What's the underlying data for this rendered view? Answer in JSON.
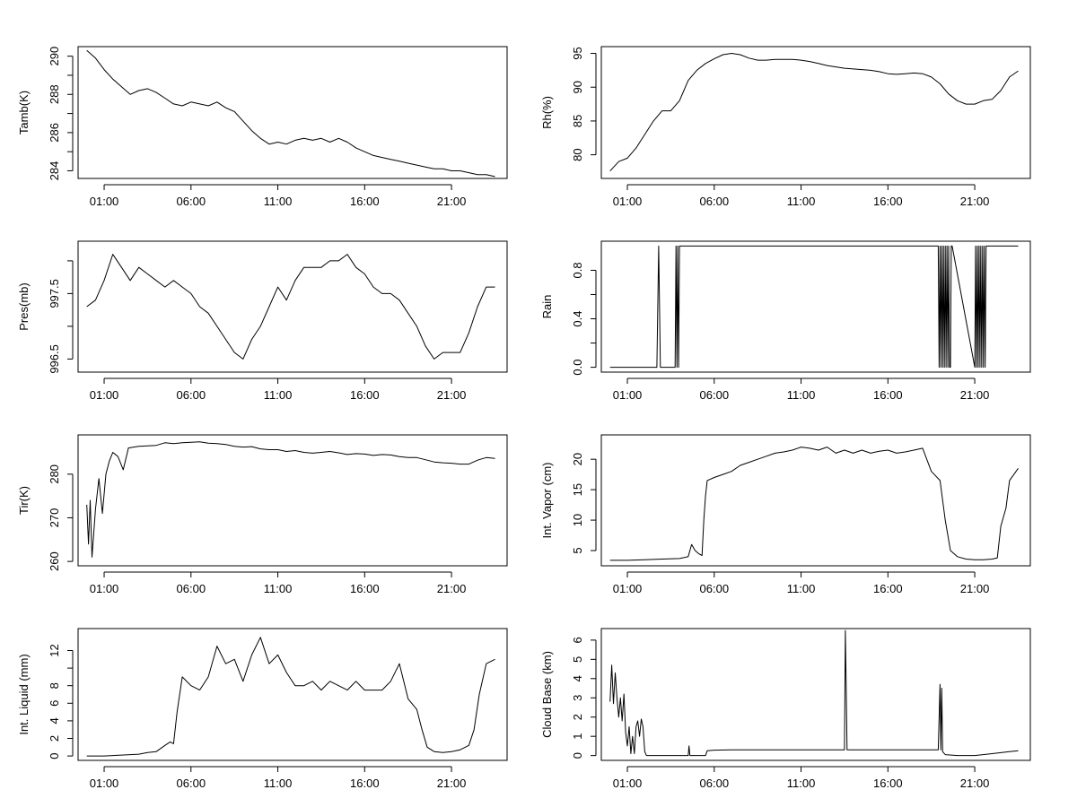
{
  "figure": {
    "description_free": true
  },
  "chart_data": [
    {
      "type": "line",
      "ylabel": "Tamb(K)",
      "x_ticks": [
        "01:00",
        "06:00",
        "11:00",
        "16:00",
        "21:00"
      ],
      "x_tick_hours": [
        1,
        6,
        11,
        16,
        21
      ],
      "xlim": [
        -0.5,
        24.2
      ],
      "ylim": [
        283.6,
        290.5
      ],
      "y_ticks": [
        284,
        286,
        288,
        290
      ],
      "y_minor_ticks": [
        285,
        287,
        289
      ],
      "x": [
        0.0,
        0.5,
        1.0,
        1.5,
        2.0,
        2.5,
        3.0,
        3.5,
        4.0,
        4.5,
        5.0,
        5.5,
        6.0,
        6.5,
        7.0,
        7.5,
        8.0,
        8.5,
        9.0,
        9.5,
        10.0,
        10.5,
        11.0,
        11.5,
        12.0,
        12.5,
        13.0,
        13.5,
        14.0,
        14.5,
        15.0,
        15.5,
        16.0,
        16.5,
        17.0,
        17.5,
        18.0,
        18.5,
        19.0,
        19.5,
        20.0,
        20.5,
        21.0,
        21.5,
        22.0,
        22.5,
        23.0,
        23.5
      ],
      "y": [
        290.3,
        289.9,
        289.3,
        288.8,
        288.4,
        288.0,
        288.2,
        288.3,
        288.1,
        287.8,
        287.5,
        287.4,
        287.6,
        287.5,
        287.4,
        287.6,
        287.3,
        287.1,
        286.6,
        286.1,
        285.7,
        285.4,
        285.5,
        285.4,
        285.6,
        285.7,
        285.6,
        285.7,
        285.5,
        285.7,
        285.5,
        285.2,
        285.0,
        284.8,
        284.7,
        284.6,
        284.5,
        284.4,
        284.3,
        284.2,
        284.1,
        284.1,
        284.0,
        284.0,
        283.9,
        283.8,
        283.8,
        283.7
      ]
    },
    {
      "type": "line",
      "ylabel": "Rh(%)",
      "x_ticks": [
        "01:00",
        "06:00",
        "11:00",
        "16:00",
        "21:00"
      ],
      "x_tick_hours": [
        1,
        6,
        11,
        16,
        21
      ],
      "xlim": [
        -0.5,
        24.2
      ],
      "ylim": [
        76.5,
        96.0
      ],
      "y_ticks": [
        80,
        85,
        90,
        95
      ],
      "y_minor_ticks": [],
      "x": [
        0.0,
        0.5,
        1.0,
        1.5,
        2.0,
        2.5,
        3.0,
        3.5,
        4.0,
        4.5,
        5.0,
        5.5,
        6.0,
        6.5,
        7.0,
        7.5,
        8.0,
        8.5,
        9.0,
        9.5,
        10.0,
        10.5,
        11.0,
        11.5,
        12.0,
        12.5,
        13.0,
        13.5,
        14.0,
        14.5,
        15.0,
        15.5,
        16.0,
        16.5,
        17.0,
        17.5,
        18.0,
        18.5,
        19.0,
        19.5,
        20.0,
        20.5,
        21.0,
        21.5,
        22.0,
        22.5,
        23.0,
        23.5
      ],
      "y": [
        77.6,
        79.0,
        79.5,
        81.0,
        83.0,
        85.0,
        86.5,
        86.5,
        88.0,
        91.0,
        92.5,
        93.5,
        94.2,
        94.8,
        95.0,
        94.8,
        94.3,
        94.0,
        94.0,
        94.1,
        94.1,
        94.1,
        94.0,
        93.8,
        93.5,
        93.2,
        93.0,
        92.8,
        92.7,
        92.6,
        92.5,
        92.3,
        92.0,
        91.9,
        92.0,
        92.1,
        92.0,
        91.5,
        90.5,
        89.0,
        88.0,
        87.5,
        87.5,
        88.0,
        88.2,
        89.5,
        91.5,
        92.4
      ]
    },
    {
      "type": "line",
      "ylabel": "Pres(mb)",
      "x_ticks": [
        "01:00",
        "06:00",
        "11:00",
        "16:00",
        "21:00"
      ],
      "x_tick_hours": [
        1,
        6,
        11,
        16,
        21
      ],
      "xlim": [
        -0.5,
        24.2
      ],
      "ylim": [
        996.3,
        998.3
      ],
      "y_ticks": [
        996.5,
        997.5
      ],
      "y_tick_labels": [
        "996.5",
        "997.5"
      ],
      "y_minor_ticks": [
        997.0,
        998.0
      ],
      "x": [
        0.0,
        0.5,
        1.0,
        1.5,
        2.0,
        2.5,
        3.0,
        3.5,
        4.0,
        4.5,
        5.0,
        5.5,
        6.0,
        6.5,
        7.0,
        7.5,
        8.0,
        8.5,
        9.0,
        9.5,
        10.0,
        10.5,
        11.0,
        11.5,
        12.0,
        12.5,
        13.0,
        13.5,
        14.0,
        14.5,
        15.0,
        15.5,
        16.0,
        16.5,
        17.0,
        17.5,
        18.0,
        18.5,
        19.0,
        19.5,
        20.0,
        20.5,
        21.0,
        21.5,
        22.0,
        22.5,
        23.0,
        23.5
      ],
      "y": [
        997.3,
        997.4,
        997.7,
        998.1,
        997.9,
        997.7,
        997.9,
        997.8,
        997.7,
        997.6,
        997.7,
        997.6,
        997.5,
        997.3,
        997.2,
        997.0,
        996.8,
        996.6,
        996.5,
        996.8,
        997.0,
        997.3,
        997.6,
        997.4,
        997.7,
        997.9,
        997.9,
        997.9,
        998.0,
        998.0,
        998.1,
        997.9,
        997.8,
        997.6,
        997.5,
        997.5,
        997.4,
        997.2,
        997.0,
        996.7,
        996.5,
        996.6,
        996.6,
        996.6,
        996.9,
        997.3,
        997.6,
        997.6
      ]
    },
    {
      "type": "line",
      "ylabel": "Rain",
      "x_ticks": [
        "01:00",
        "06:00",
        "11:00",
        "16:00",
        "21:00"
      ],
      "x_tick_hours": [
        1,
        6,
        11,
        16,
        21
      ],
      "xlim": [
        -0.5,
        24.2
      ],
      "ylim": [
        -0.04,
        1.04
      ],
      "y_ticks": [
        0.0,
        0.4,
        0.8
      ],
      "y_tick_labels": [
        "0.0",
        "0.4",
        "0.8"
      ],
      "y_minor_ticks": [
        0.2,
        0.6
      ],
      "x": [
        0.0,
        2.7,
        2.8,
        2.9,
        3.0,
        3.75,
        3.8,
        3.85,
        3.9,
        3.95,
        4.0,
        4.05,
        4.1,
        18.9,
        18.95,
        19.0,
        19.05,
        19.1,
        19.15,
        19.2,
        19.25,
        19.3,
        19.35,
        19.4,
        19.45,
        19.5,
        19.55,
        19.6,
        19.65,
        19.7,
        21.0,
        21.05,
        21.1,
        21.15,
        21.2,
        21.25,
        21.3,
        21.35,
        21.4,
        21.45,
        21.5,
        21.55,
        21.6,
        21.65,
        21.7,
        23.5
      ],
      "y": [
        0,
        0,
        1,
        0,
        0,
        0,
        1,
        0,
        1,
        0,
        1,
        1,
        1,
        1,
        0,
        1,
        0,
        1,
        0,
        1,
        0,
        1,
        0,
        1,
        0,
        1,
        0,
        0,
        1,
        1,
        0,
        1,
        0,
        1,
        0,
        1,
        0,
        1,
        0,
        1,
        0,
        1,
        0,
        1,
        1,
        1
      ]
    },
    {
      "type": "line",
      "ylabel": "Tir(K)",
      "x_ticks": [
        "01:00",
        "06:00",
        "11:00",
        "16:00",
        "21:00"
      ],
      "x_tick_hours": [
        1,
        6,
        11,
        16,
        21
      ],
      "xlim": [
        -0.5,
        24.2
      ],
      "ylim": [
        259.0,
        289.0
      ],
      "y_ticks": [
        260,
        270,
        280
      ],
      "y_minor_ticks": [],
      "x": [
        0.0,
        0.1,
        0.2,
        0.3,
        0.5,
        0.7,
        0.9,
        1.1,
        1.3,
        1.5,
        1.8,
        2.1,
        2.4,
        2.7,
        3.0,
        3.5,
        4.0,
        4.5,
        5.0,
        5.5,
        6.0,
        6.5,
        7.0,
        7.5,
        8.0,
        8.5,
        9.0,
        9.5,
        10.0,
        10.5,
        11.0,
        11.5,
        12.0,
        12.5,
        13.0,
        13.5,
        14.0,
        14.5,
        15.0,
        15.5,
        16.0,
        16.5,
        17.0,
        17.5,
        18.0,
        18.5,
        19.0,
        19.5,
        20.0,
        20.5,
        21.0,
        21.5,
        22.0,
        22.5,
        23.0,
        23.5
      ],
      "y": [
        273.0,
        264.0,
        274.0,
        261.0,
        272.0,
        279.0,
        271.0,
        280.0,
        283.0,
        285.0,
        284.0,
        281.0,
        286.0,
        286.2,
        286.4,
        286.5,
        286.6,
        287.2,
        287.0,
        287.2,
        287.3,
        287.4,
        287.1,
        287.0,
        286.8,
        286.4,
        286.2,
        286.3,
        285.8,
        285.6,
        285.6,
        285.2,
        285.4,
        285.0,
        284.8,
        285.0,
        285.2,
        284.9,
        284.5,
        284.7,
        284.6,
        284.3,
        284.5,
        284.4,
        284.0,
        283.8,
        283.8,
        283.3,
        282.8,
        282.6,
        282.5,
        282.3,
        282.3,
        283.2,
        283.8,
        283.6
      ]
    },
    {
      "type": "line",
      "ylabel": "Int. Vapor (cm)",
      "x_ticks": [
        "01:00",
        "06:00",
        "11:00",
        "16:00",
        "21:00"
      ],
      "x_tick_hours": [
        1,
        6,
        11,
        16,
        21
      ],
      "xlim": [
        -0.5,
        24.2
      ],
      "ylim": [
        2.5,
        24.0
      ],
      "y_ticks": [
        5,
        10,
        15,
        20
      ],
      "y_minor_ticks": [],
      "x": [
        0.0,
        1.0,
        2.0,
        3.0,
        4.0,
        4.5,
        4.7,
        4.9,
        5.1,
        5.3,
        5.4,
        5.5,
        5.6,
        6.0,
        6.5,
        7.0,
        7.5,
        8.0,
        8.5,
        9.0,
        9.5,
        10.0,
        10.5,
        11.0,
        11.5,
        12.0,
        12.5,
        13.0,
        13.5,
        14.0,
        14.5,
        15.0,
        15.5,
        16.0,
        16.5,
        17.0,
        17.5,
        18.0,
        18.5,
        19.0,
        19.3,
        19.6,
        20.0,
        20.5,
        21.0,
        21.5,
        22.0,
        22.3,
        22.5,
        22.8,
        23.0,
        23.5
      ],
      "y": [
        3.4,
        3.4,
        3.5,
        3.6,
        3.7,
        4.0,
        6.0,
        5.0,
        4.5,
        4.2,
        10.0,
        14.0,
        16.5,
        17.0,
        17.5,
        18.0,
        19.0,
        19.5,
        20.0,
        20.5,
        21.0,
        21.2,
        21.5,
        22.0,
        21.8,
        21.5,
        22.0,
        21.0,
        21.5,
        21.0,
        21.5,
        21.0,
        21.3,
        21.5,
        21.0,
        21.2,
        21.5,
        21.8,
        18.0,
        16.5,
        10.0,
        5.0,
        4.0,
        3.6,
        3.5,
        3.5,
        3.6,
        3.8,
        9.0,
        12.0,
        16.5,
        18.5
      ]
    },
    {
      "type": "line",
      "ylabel": "Int. Liquid (mm)",
      "x_ticks": [
        "01:00",
        "06:00",
        "11:00",
        "16:00",
        "21:00"
      ],
      "x_tick_hours": [
        1,
        6,
        11,
        16,
        21
      ],
      "xlim": [
        -0.5,
        24.2
      ],
      "ylim": [
        -0.5,
        14.5
      ],
      "y_ticks": [
        0,
        2,
        4,
        6,
        8,
        12
      ],
      "y_minor_ticks": [
        10
      ],
      "x": [
        0.0,
        1.0,
        2.0,
        3.0,
        3.5,
        4.0,
        4.5,
        4.8,
        5.0,
        5.2,
        5.5,
        6.0,
        6.5,
        7.0,
        7.5,
        8.0,
        8.5,
        9.0,
        9.5,
        10.0,
        10.5,
        11.0,
        11.5,
        12.0,
        12.5,
        13.0,
        13.5,
        14.0,
        14.5,
        15.0,
        15.5,
        16.0,
        16.5,
        17.0,
        17.5,
        18.0,
        18.5,
        19.0,
        19.3,
        19.6,
        20.0,
        20.5,
        21.0,
        21.5,
        22.0,
        22.3,
        22.6,
        23.0,
        23.5
      ],
      "y": [
        0.0,
        0.0,
        0.1,
        0.2,
        0.4,
        0.5,
        1.2,
        1.6,
        1.4,
        5.0,
        9.0,
        8.0,
        7.5,
        9.0,
        12.5,
        10.5,
        11.0,
        8.5,
        11.5,
        13.5,
        10.5,
        11.5,
        9.5,
        8.0,
        8.0,
        8.5,
        7.5,
        8.5,
        8.0,
        7.5,
        8.5,
        7.5,
        7.5,
        7.5,
        8.5,
        10.5,
        6.5,
        5.3,
        3.0,
        1.0,
        0.5,
        0.4,
        0.5,
        0.7,
        1.2,
        3.0,
        7.0,
        10.5,
        11.0
      ]
    },
    {
      "type": "line",
      "ylabel": "Cloud Base (km)",
      "x_ticks": [
        "01:00",
        "06:00",
        "11:00",
        "16:00",
        "21:00"
      ],
      "x_tick_hours": [
        1,
        6,
        11,
        16,
        21
      ],
      "xlim": [
        -0.5,
        24.2
      ],
      "ylim": [
        -0.25,
        6.6
      ],
      "y_ticks": [
        0,
        1,
        2,
        3,
        4,
        5,
        6
      ],
      "y_minor_ticks": [],
      "x": [
        0.0,
        0.1,
        0.2,
        0.3,
        0.4,
        0.5,
        0.6,
        0.7,
        0.8,
        0.9,
        1.0,
        1.1,
        1.2,
        1.3,
        1.4,
        1.5,
        1.6,
        1.7,
        1.8,
        1.9,
        2.0,
        2.1,
        2.2,
        2.3,
        2.5,
        3.0,
        3.5,
        4.0,
        4.5,
        4.55,
        4.6,
        5.0,
        5.5,
        5.6,
        6.0,
        7.0,
        8.0,
        9.0,
        10.0,
        11.0,
        12.0,
        13.0,
        13.5,
        13.55,
        13.6,
        13.65,
        14.0,
        15.0,
        16.0,
        17.0,
        18.0,
        18.9,
        19.0,
        19.05,
        19.1,
        19.15,
        19.3,
        20.0,
        21.0,
        22.0,
        23.0,
        23.5
      ],
      "y": [
        2.8,
        4.7,
        2.7,
        4.3,
        3.0,
        2.0,
        3.0,
        1.8,
        3.2,
        1.2,
        0.5,
        1.5,
        0.1,
        1.0,
        0.1,
        1.5,
        1.8,
        1.0,
        1.9,
        1.5,
        0.2,
        0.0,
        0.0,
        0.0,
        0.0,
        0.0,
        0.0,
        0.0,
        0.0,
        0.5,
        0.0,
        0.0,
        0.0,
        0.25,
        0.28,
        0.3,
        0.3,
        0.3,
        0.3,
        0.3,
        0.3,
        0.3,
        0.3,
        6.5,
        3.4,
        0.3,
        0.3,
        0.3,
        0.3,
        0.3,
        0.3,
        0.3,
        3.7,
        0.3,
        3.5,
        0.2,
        0.05,
        0.0,
        0.0,
        0.1,
        0.2,
        0.25
      ]
    }
  ]
}
